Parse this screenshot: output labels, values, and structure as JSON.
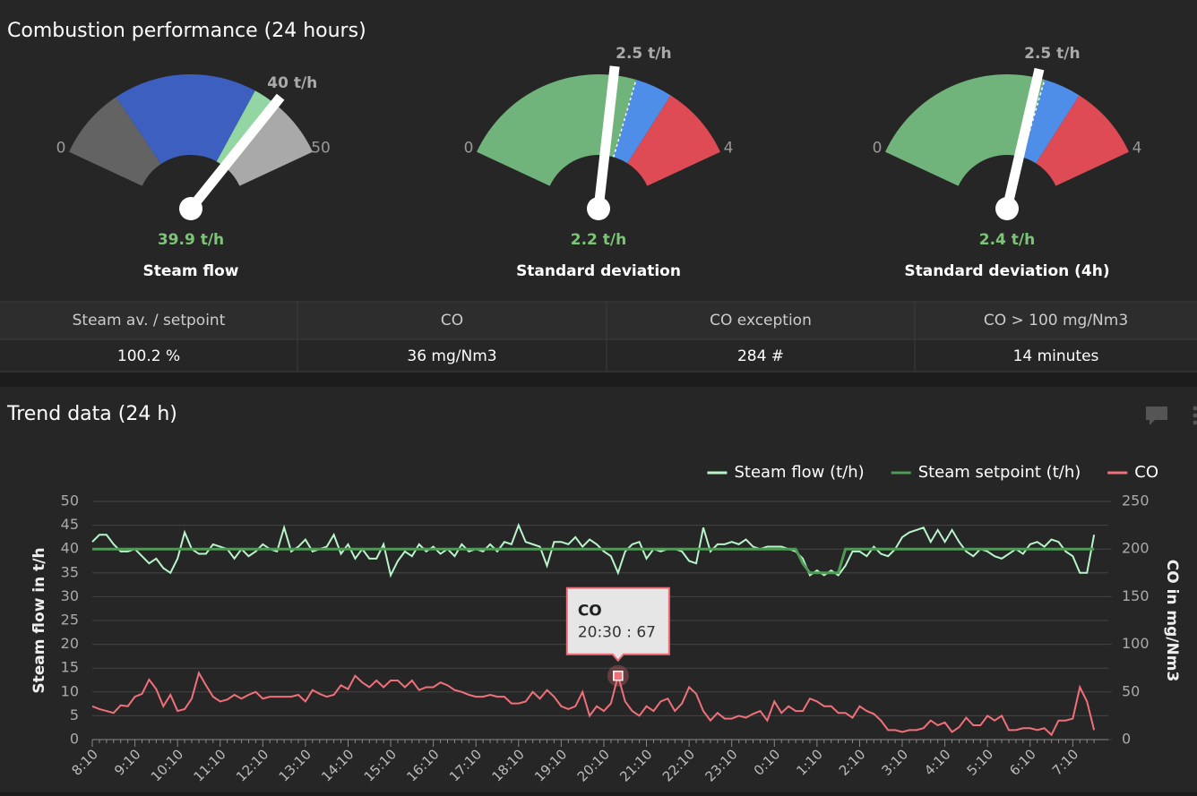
{
  "panel": {
    "title": "Combustion performance (24 hours)"
  },
  "gauges": [
    {
      "title": "Steam flow",
      "min": 0,
      "max": 50,
      "value": {
        "value": 39.9,
        "label": "39.9 t/h"
      },
      "setpoint": {
        "value": 40,
        "label": "40 t/h"
      },
      "bands": [
        {
          "from": 0,
          "to": 12,
          "color": "#636363"
        },
        {
          "from": 12,
          "to": 36,
          "color": "#3d5fbf"
        },
        {
          "from": 36,
          "to": 40,
          "color": "#93d6a3"
        },
        {
          "from": 40,
          "to": 50,
          "color": "#a9a9a9"
        }
      ]
    },
    {
      "title": "Standard deviation",
      "min": 0,
      "max": 4,
      "value": {
        "value": 2.2,
        "label": "2.2 t/h"
      },
      "setpoint": {
        "value": 2.5,
        "label": "2.5 t/h"
      },
      "bands": [
        {
          "from": 0,
          "to": 2.5,
          "color": "#70b47c"
        },
        {
          "from": 2.5,
          "to": 3,
          "color": "#4f8ee8"
        },
        {
          "from": 3,
          "to": 4,
          "color": "#de4b55"
        }
      ]
    },
    {
      "title": "Standard deviation (4h)",
      "min": 0,
      "max": 4,
      "value": {
        "value": 2.4,
        "label": "2.4 t/h"
      },
      "setpoint": {
        "value": 2.5,
        "label": "2.5 t/h"
      },
      "bands": [
        {
          "from": 0,
          "to": 2.5,
          "color": "#70b47c"
        },
        {
          "from": 2.5,
          "to": 3,
          "color": "#4f8ee8"
        },
        {
          "from": 3,
          "to": 4,
          "color": "#de4b55"
        }
      ]
    }
  ],
  "table": {
    "header": [
      "Steam av. / setpoint",
      "CO",
      "CO exception",
      "CO > 100 mg/Nm3"
    ],
    "row": [
      "100.2 %",
      "36 mg/Nm3",
      "284 #",
      "14 minutes"
    ]
  },
  "trend": {
    "type": "line",
    "title": "Trend data (24 h)",
    "ylabel": "Steam flow in t/h",
    "y2label": "CO in mg/Nm3",
    "ylim": [
      0,
      50
    ],
    "yticks": [
      0,
      5,
      10,
      15,
      20,
      25,
      30,
      35,
      40,
      45,
      50
    ],
    "y2lim": [
      0,
      250
    ],
    "y2ticks": [
      0,
      50,
      100,
      150,
      200,
      250
    ],
    "grid": true,
    "legend": "top-right",
    "categories": [
      "8:10",
      null,
      null,
      null,
      null,
      null,
      "9:10",
      null,
      null,
      null,
      null,
      null,
      "10:10",
      null,
      null,
      null,
      null,
      null,
      "11:10",
      null,
      null,
      null,
      null,
      null,
      "12:10",
      null,
      null,
      null,
      null,
      null,
      "13:10",
      null,
      null,
      null,
      null,
      null,
      "14:10",
      null,
      null,
      null,
      null,
      null,
      "15:10",
      null,
      null,
      null,
      null,
      null,
      "16:10",
      null,
      null,
      null,
      null,
      null,
      "17:10",
      null,
      null,
      null,
      null,
      null,
      "18:10",
      null,
      null,
      null,
      null,
      null,
      "19:10",
      null,
      null,
      null,
      null,
      null,
      "20:10",
      null,
      null,
      null,
      null,
      null,
      "21:10",
      null,
      null,
      null,
      null,
      null,
      "22:10",
      null,
      null,
      null,
      null,
      null,
      "23:10",
      null,
      null,
      null,
      null,
      null,
      "0:10",
      null,
      null,
      null,
      null,
      null,
      "1:10",
      null,
      null,
      null,
      null,
      null,
      "2:10",
      null,
      null,
      null,
      null,
      null,
      "3:10",
      null,
      null,
      null,
      null,
      null,
      "4:10",
      null,
      null,
      null,
      null,
      null,
      "5:10",
      null,
      null,
      null,
      null,
      null,
      "6:10",
      null,
      null,
      null,
      null,
      null,
      "7:10",
      null,
      null,
      null
    ],
    "series": [
      {
        "name": "Steam flow (t/h)",
        "color": "#b8f5c9",
        "values": [
          41.5,
          43,
          43,
          41,
          39.5,
          39.5,
          40,
          38.5,
          37,
          38,
          36,
          35,
          38,
          43.5,
          40,
          39,
          39,
          41,
          40.5,
          40,
          38,
          40,
          38.5,
          39.5,
          41,
          40,
          39.5,
          44.5,
          39.5,
          40.5,
          42,
          39.5,
          40,
          40.5,
          43,
          39,
          41,
          38,
          40,
          38,
          38,
          41,
          34.5,
          37.5,
          39.5,
          38.5,
          41,
          39.5,
          40.5,
          39,
          40,
          38.5,
          41,
          39.5,
          40,
          39.5,
          41,
          39.5,
          41.5,
          41,
          45,
          41.5,
          41,
          40.5,
          36.5,
          41.5,
          41.5,
          41,
          42.5,
          40.5,
          42,
          41,
          39.5,
          38.5,
          35,
          39.5,
          41,
          41.5,
          38,
          40,
          39.5,
          40,
          40,
          39.5,
          37.5,
          37,
          44.5,
          39.5,
          41,
          41,
          41.5,
          41,
          42,
          40.5,
          40,
          40.5,
          40.5,
          40.5,
          40,
          39.5,
          38,
          34.5,
          35.5,
          34.5,
          35.5,
          34.5,
          36.5,
          39.5,
          39.5,
          38.5,
          40.5,
          39,
          38.5,
          40,
          42.5,
          43.5,
          44,
          44.5,
          41.5,
          44,
          41.5,
          44,
          41.5,
          39.5,
          38.5,
          40,
          39.5,
          38.5,
          38,
          39,
          40,
          39,
          41,
          41.5,
          40.5,
          42,
          41.5,
          39.5,
          38.5,
          35,
          35,
          43
        ]
      },
      {
        "name": "Steam setpoint (t/h)",
        "color": "#4f9a57",
        "values": [
          40,
          40,
          40,
          40,
          40,
          40,
          40,
          40,
          40,
          40,
          40,
          40,
          40,
          40,
          40,
          40,
          40,
          40,
          40,
          40,
          40,
          40,
          40,
          40,
          40,
          40,
          40,
          40,
          40,
          40,
          40,
          40,
          40,
          40,
          40,
          40,
          40,
          40,
          40,
          40,
          40,
          40,
          40,
          40,
          40,
          40,
          40,
          40,
          40,
          40,
          40,
          40,
          40,
          40,
          40,
          40,
          40,
          40,
          40,
          40,
          40,
          40,
          40,
          40,
          40,
          40,
          40,
          40,
          40,
          40,
          40,
          40,
          40,
          40,
          40,
          40,
          40,
          40,
          40,
          40,
          40,
          40,
          40,
          40,
          40,
          40,
          40,
          40,
          40,
          40,
          40,
          40,
          40,
          40,
          40,
          40,
          40,
          40,
          40,
          40,
          37,
          35,
          35,
          35,
          35,
          35,
          40,
          40,
          40,
          40,
          40,
          40,
          40,
          40,
          40,
          40,
          40,
          40,
          40,
          40,
          40,
          40,
          40,
          40,
          40,
          40,
          40,
          40,
          40,
          40,
          40,
          40,
          40,
          40,
          40,
          40,
          40,
          40,
          40,
          40,
          40,
          40
        ]
      },
      {
        "name": "CO",
        "color": "#f0707a",
        "axis": "y2",
        "values": [
          35,
          32,
          30,
          28,
          36,
          35,
          45,
          48,
          63,
          53,
          35,
          47,
          30,
          32,
          43,
          70,
          57,
          45,
          40,
          42,
          47,
          43,
          47,
          50,
          43,
          45,
          45,
          45,
          45,
          47,
          40,
          52,
          48,
          45,
          47,
          57,
          53,
          67,
          60,
          55,
          62,
          55,
          62,
          62,
          55,
          62,
          52,
          55,
          55,
          60,
          57,
          52,
          50,
          47,
          45,
          45,
          47,
          45,
          45,
          38,
          38,
          40,
          50,
          43,
          52,
          45,
          35,
          32,
          35,
          50,
          25,
          35,
          30,
          38,
          67,
          40,
          30,
          25,
          35,
          30,
          40,
          43,
          30,
          38,
          55,
          48,
          30,
          20,
          28,
          22,
          22,
          25,
          23,
          27,
          30,
          20,
          40,
          28,
          35,
          30,
          30,
          43,
          40,
          35,
          35,
          28,
          28,
          23,
          35,
          30,
          27,
          20,
          10,
          10,
          8,
          10,
          10,
          12,
          20,
          15,
          18,
          8,
          13,
          23,
          15,
          15,
          25,
          20,
          25,
          10,
          10,
          12,
          12,
          10,
          12,
          5,
          20,
          20,
          22,
          55,
          40,
          10
        ]
      }
    ],
    "tooltip": {
      "title": "CO",
      "text": "20:30 : 67"
    }
  }
}
